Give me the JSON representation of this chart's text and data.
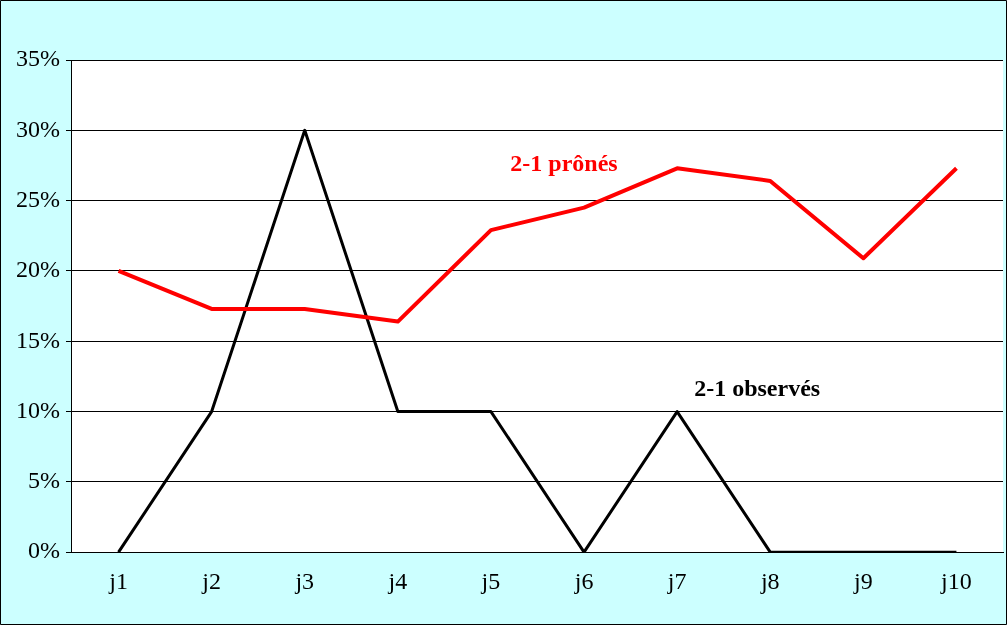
{
  "chart_data": {
    "type": "line",
    "categories": [
      "j1",
      "j2",
      "j3",
      "j4",
      "j5",
      "j6",
      "j7",
      "j8",
      "j9",
      "j10"
    ],
    "series": [
      {
        "name": "2-1 prônés",
        "color": "#ff0000",
        "values": [
          20.0,
          17.3,
          17.3,
          16.4,
          22.9,
          24.5,
          27.3,
          26.4,
          20.9,
          27.3
        ]
      },
      {
        "name": "2-1 observés",
        "color": "#000000",
        "values": [
          0,
          10,
          30,
          10,
          10,
          0,
          10,
          0,
          0,
          0
        ]
      }
    ],
    "ylim": [
      0,
      35
    ],
    "yticks": [
      {
        "value": 0,
        "label": "0%"
      },
      {
        "value": 5,
        "label": "5%"
      },
      {
        "value": 10,
        "label": "10%"
      },
      {
        "value": 15,
        "label": "15%"
      },
      {
        "value": 20,
        "label": "20%"
      },
      {
        "value": 25,
        "label": "25%"
      },
      {
        "value": 30,
        "label": "30%"
      },
      {
        "value": 35,
        "label": "35%"
      }
    ],
    "grid": "y",
    "legend": false,
    "marker": "none",
    "line_style": "solid"
  }
}
